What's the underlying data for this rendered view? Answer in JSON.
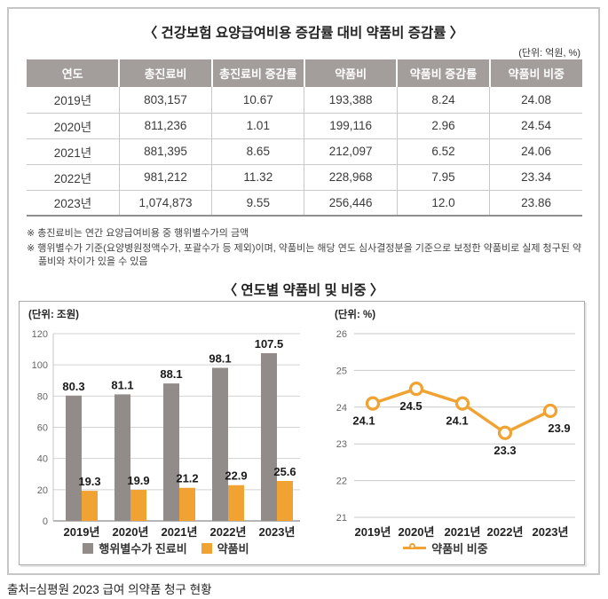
{
  "table_section": {
    "title": "〈 건강보험 요양급여비용 증감률 대비 약품비 증감률 〉",
    "unit": "(단위: 억원, %)"
  },
  "table": {
    "headers": [
      "연도",
      "총진료비",
      "총진료비 증감률",
      "약품비",
      "약품비 증감률",
      "약품비 비중"
    ],
    "rows": [
      [
        "2019년",
        "803,157",
        "10.67",
        "193,388",
        "8.24",
        "24.08"
      ],
      [
        "2020년",
        "811,236",
        "1.01",
        "199,116",
        "2.96",
        "24.54"
      ],
      [
        "2021년",
        "881,395",
        "8.65",
        "212,097",
        "6.52",
        "24.06"
      ],
      [
        "2022년",
        "981,212",
        "11.32",
        "228,968",
        "7.95",
        "23.34"
      ],
      [
        "2023년",
        "1,074,873",
        "9.55",
        "256,446",
        "12.0",
        "23.86"
      ]
    ]
  },
  "footnotes": [
    "※ 총진료비는 연간 요양급여비용 중 행위별수가의 금액",
    "※ 행위별수가 기준(요양병원정액수가, 포괄수가 등 제외)이며, 약품비는 해당 연도 심사결정분을 기준으로 보정한 약품비로 실제 청구된 약품비와 차이가 있을 수 있음"
  ],
  "chart_section": {
    "title": "〈 연도별 약품비 및 비중 〉"
  },
  "colors": {
    "table_header_bg": "#a39e9b",
    "bar_gray": "#918c8a",
    "accent_orange": "#f0a232",
    "gridline": "#d2d2d2",
    "axis": "#8a8a8a"
  },
  "chart_data": [
    {
      "type": "bar",
      "title": "연도별 약품비 및 비중 - 막대그래프",
      "unit_label": "(단위: 조원)",
      "categories": [
        "2019년",
        "2020년",
        "2021년",
        "2022년",
        "2023년"
      ],
      "series": [
        {
          "name": "행위별수가 진료비",
          "color": "#918c8a",
          "values": [
            80.3,
            81.1,
            88.1,
            98.1,
            107.5
          ]
        },
        {
          "name": "약품비",
          "color": "#f0a232",
          "values": [
            19.3,
            19.9,
            21.2,
            22.9,
            25.6
          ]
        }
      ],
      "ylim": [
        0,
        120
      ],
      "ytick_step": 20,
      "grid": true,
      "legend_position": "bottom"
    },
    {
      "type": "line",
      "title": "연도별 약품비 비중 - 꺾은선그래프",
      "unit_label": "(단위: %)",
      "categories": [
        "2019년",
        "2020년",
        "2021년",
        "2022년",
        "2023년"
      ],
      "series": [
        {
          "name": "약품비 비중",
          "color": "#f0a232",
          "values": [
            24.1,
            24.5,
            24.1,
            23.3,
            23.9
          ]
        }
      ],
      "ylim": [
        21,
        26
      ],
      "ytick_step": 1,
      "grid": true,
      "legend_position": "bottom"
    }
  ],
  "source": "출처=심평원 2023 급여 의약품 청구 현황"
}
